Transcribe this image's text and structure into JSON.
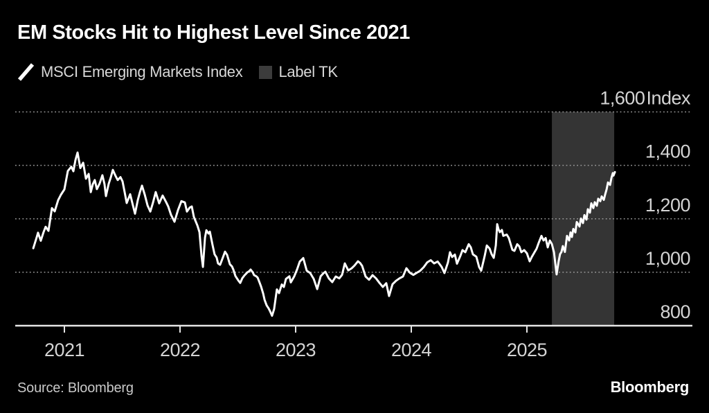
{
  "header": {
    "title": "EM Stocks Hit to Highest Level Since 2021"
  },
  "legend": {
    "series_label": "MSCI Emerging Markets Index",
    "band_label": "Label TK",
    "series_color": "#ffffff",
    "band_swatch_color": "#3c3c3c"
  },
  "footer": {
    "source": "Source: Bloomberg",
    "logo": "Bloomberg"
  },
  "colors": {
    "background": "#000000",
    "line": "#ffffff",
    "band": "#343434",
    "grid": "#9a9a9a",
    "axis": "#e6e6e6",
    "axis_label": "#d4d4d4"
  },
  "chart_data": {
    "type": "line",
    "title": "EM Stocks Hit to Highest Level Since 2021",
    "x_axis": {
      "range": [
        2020.72,
        2025.77
      ],
      "ticks": [
        {
          "value": 2021,
          "label": "2021"
        },
        {
          "value": 2022,
          "label": "2022"
        },
        {
          "value": 2023,
          "label": "2023"
        },
        {
          "value": 2024,
          "label": "2024"
        },
        {
          "value": 2025,
          "label": "2025"
        }
      ]
    },
    "y_axis": {
      "range": [
        800,
        1600
      ],
      "unit_label": "Index",
      "grid": "dotted",
      "ticks": [
        {
          "value": 1600,
          "label": "1,600"
        },
        {
          "value": 1400,
          "label": "1,400"
        },
        {
          "value": 1200,
          "label": "1,200"
        },
        {
          "value": 1000,
          "label": "1,000"
        },
        {
          "value": 800,
          "label": "800"
        }
      ]
    },
    "highlight_band": {
      "label": "Label TK",
      "from": 2025.216,
      "to": 2025.755,
      "color": "#343434"
    },
    "series": [
      {
        "name": "MSCI Emerging Markets Index",
        "color": "#ffffff",
        "points": [
          [
            2020.731,
            1090
          ],
          [
            2020.76,
            1130
          ],
          [
            2020.772,
            1148
          ],
          [
            2020.796,
            1118
          ],
          [
            2020.82,
            1150
          ],
          [
            2020.838,
            1170
          ],
          [
            2020.862,
            1155
          ],
          [
            2020.892,
            1240
          ],
          [
            2020.916,
            1228
          ],
          [
            2020.946,
            1270
          ],
          [
            2020.97,
            1290
          ],
          [
            2021.0,
            1310
          ],
          [
            2021.03,
            1379
          ],
          [
            2021.06,
            1395
          ],
          [
            2021.078,
            1378
          ],
          [
            2021.096,
            1420
          ],
          [
            2021.114,
            1448
          ],
          [
            2021.138,
            1390
          ],
          [
            2021.162,
            1410
          ],
          [
            2021.186,
            1350
          ],
          [
            2021.21,
            1368
          ],
          [
            2021.228,
            1300
          ],
          [
            2021.246,
            1330
          ],
          [
            2021.263,
            1345
          ],
          [
            2021.281,
            1311
          ],
          [
            2021.305,
            1332
          ],
          [
            2021.329,
            1363
          ],
          [
            2021.347,
            1330
          ],
          [
            2021.359,
            1285
          ],
          [
            2021.383,
            1331
          ],
          [
            2021.401,
            1355
          ],
          [
            2021.419,
            1383
          ],
          [
            2021.443,
            1360
          ],
          [
            2021.461,
            1345
          ],
          [
            2021.485,
            1356
          ],
          [
            2021.503,
            1340
          ],
          [
            2021.521,
            1300
          ],
          [
            2021.539,
            1259
          ],
          [
            2021.569,
            1292
          ],
          [
            2021.593,
            1250
          ],
          [
            2021.611,
            1219
          ],
          [
            2021.635,
            1270
          ],
          [
            2021.653,
            1300
          ],
          [
            2021.671,
            1324
          ],
          [
            2021.695,
            1290
          ],
          [
            2021.719,
            1250
          ],
          [
            2021.743,
            1227
          ],
          [
            2021.766,
            1260
          ],
          [
            2021.79,
            1300
          ],
          [
            2021.82,
            1258
          ],
          [
            2021.85,
            1287
          ],
          [
            2021.88,
            1262
          ],
          [
            2021.898,
            1246
          ],
          [
            2021.922,
            1215
          ],
          [
            2021.952,
            1189
          ],
          [
            2021.982,
            1232
          ],
          [
            2022.012,
            1266
          ],
          [
            2022.042,
            1261
          ],
          [
            2022.06,
            1227
          ],
          [
            2022.084,
            1242
          ],
          [
            2022.102,
            1246
          ],
          [
            2022.12,
            1207
          ],
          [
            2022.15,
            1175
          ],
          [
            2022.168,
            1150
          ],
          [
            2022.186,
            1060
          ],
          [
            2022.198,
            1020
          ],
          [
            2022.216,
            1130
          ],
          [
            2022.228,
            1157
          ],
          [
            2022.246,
            1145
          ],
          [
            2022.258,
            1152
          ],
          [
            2022.281,
            1103
          ],
          [
            2022.299,
            1067
          ],
          [
            2022.317,
            1055
          ],
          [
            2022.329,
            1033
          ],
          [
            2022.347,
            1028
          ],
          [
            2022.371,
            1056
          ],
          [
            2022.389,
            1077
          ],
          [
            2022.407,
            1065
          ],
          [
            2022.431,
            1030
          ],
          [
            2022.449,
            1022
          ],
          [
            2022.461,
            1010
          ],
          [
            2022.479,
            986
          ],
          [
            2022.503,
            970
          ],
          [
            2022.521,
            960
          ],
          [
            2022.539,
            978
          ],
          [
            2022.557,
            988
          ],
          [
            2022.581,
            999
          ],
          [
            2022.599,
            1004
          ],
          [
            2022.611,
            1010
          ],
          [
            2022.629,
            1000
          ],
          [
            2022.641,
            989
          ],
          [
            2022.659,
            985
          ],
          [
            2022.671,
            980
          ],
          [
            2022.689,
            960
          ],
          [
            2022.701,
            946
          ],
          [
            2022.719,
            920
          ],
          [
            2022.731,
            897
          ],
          [
            2022.749,
            876
          ],
          [
            2022.766,
            865
          ],
          [
            2022.778,
            855
          ],
          [
            2022.796,
            837
          ],
          [
            2022.814,
            862
          ],
          [
            2022.838,
            936
          ],
          [
            2022.856,
            922
          ],
          [
            2022.88,
            954
          ],
          [
            2022.898,
            945
          ],
          [
            2022.916,
            975
          ],
          [
            2022.946,
            985
          ],
          [
            2022.958,
            962
          ],
          [
            2022.988,
            985
          ],
          [
            2023.012,
            1010
          ],
          [
            2023.036,
            1040
          ],
          [
            2023.066,
            1053
          ],
          [
            2023.096,
            1006
          ],
          [
            2023.126,
            997
          ],
          [
            2023.156,
            975
          ],
          [
            2023.186,
            937
          ],
          [
            2023.216,
            985
          ],
          [
            2023.24,
            996
          ],
          [
            2023.257,
            1002
          ],
          [
            2023.287,
            977
          ],
          [
            2023.317,
            963
          ],
          [
            2023.347,
            984
          ],
          [
            2023.377,
            977
          ],
          [
            2023.401,
            990
          ],
          [
            2023.425,
            1033
          ],
          [
            2023.455,
            1007
          ],
          [
            2023.485,
            1015
          ],
          [
            2023.509,
            1025
          ],
          [
            2023.539,
            1041
          ],
          [
            2023.557,
            1035
          ],
          [
            2023.575,
            1024
          ],
          [
            2023.605,
            984
          ],
          [
            2023.635,
            972
          ],
          [
            2023.665,
            989
          ],
          [
            2023.695,
            977
          ],
          [
            2023.725,
            960
          ],
          [
            2023.754,
            945
          ],
          [
            2023.784,
            959
          ],
          [
            2023.808,
            911
          ],
          [
            2023.838,
            955
          ],
          [
            2023.868,
            968
          ],
          [
            2023.898,
            977
          ],
          [
            2023.928,
            984
          ],
          [
            2023.958,
            1015
          ],
          [
            2023.988,
            998
          ],
          [
            2024.018,
            990
          ],
          [
            2024.048,
            998
          ],
          [
            2024.078,
            1006
          ],
          [
            2024.108,
            1019
          ],
          [
            2024.138,
            1037
          ],
          [
            2024.168,
            1045
          ],
          [
            2024.198,
            1033
          ],
          [
            2024.228,
            1040
          ],
          [
            2024.263,
            1020
          ],
          [
            2024.287,
            997
          ],
          [
            2024.317,
            1036
          ],
          [
            2024.335,
            1075
          ],
          [
            2024.353,
            1057
          ],
          [
            2024.377,
            1066
          ],
          [
            2024.395,
            1032
          ],
          [
            2024.425,
            1062
          ],
          [
            2024.443,
            1083
          ],
          [
            2024.467,
            1075
          ],
          [
            2024.497,
            1105
          ],
          [
            2024.515,
            1093
          ],
          [
            2024.533,
            1067
          ],
          [
            2024.563,
            1058
          ],
          [
            2024.587,
            1019
          ],
          [
            2024.605,
            1006
          ],
          [
            2024.635,
            1061
          ],
          [
            2024.653,
            1100
          ],
          [
            2024.677,
            1089
          ],
          [
            2024.695,
            1067
          ],
          [
            2024.713,
            1054
          ],
          [
            2024.731,
            1100
          ],
          [
            2024.743,
            1180
          ],
          [
            2024.755,
            1160
          ],
          [
            2024.766,
            1150
          ],
          [
            2024.784,
            1158
          ],
          [
            2024.796,
            1136
          ],
          [
            2024.826,
            1141
          ],
          [
            2024.844,
            1128
          ],
          [
            2024.856,
            1110
          ],
          [
            2024.874,
            1084
          ],
          [
            2024.892,
            1080
          ],
          [
            2024.916,
            1105
          ],
          [
            2024.934,
            1097
          ],
          [
            2024.952,
            1075
          ],
          [
            2024.976,
            1083
          ],
          [
            2025.0,
            1071
          ],
          [
            2025.024,
            1041
          ],
          [
            2025.042,
            1057
          ],
          [
            2025.066,
            1075
          ],
          [
            2025.084,
            1088
          ],
          [
            2025.102,
            1110
          ],
          [
            2025.126,
            1136
          ],
          [
            2025.144,
            1119
          ],
          [
            2025.162,
            1128
          ],
          [
            2025.18,
            1093
          ],
          [
            2025.198,
            1119
          ],
          [
            2025.216,
            1105
          ],
          [
            2025.234,
            1075
          ],
          [
            2025.257,
            992
          ],
          [
            2025.275,
            1042
          ],
          [
            2025.287,
            1068
          ],
          [
            2025.299,
            1076
          ],
          [
            2025.311,
            1098
          ],
          [
            2025.329,
            1076
          ],
          [
            2025.347,
            1136
          ],
          [
            2025.365,
            1119
          ],
          [
            2025.377,
            1149
          ],
          [
            2025.389,
            1132
          ],
          [
            2025.401,
            1162
          ],
          [
            2025.419,
            1149
          ],
          [
            2025.431,
            1188
          ],
          [
            2025.455,
            1171
          ],
          [
            2025.467,
            1201
          ],
          [
            2025.485,
            1184
          ],
          [
            2025.497,
            1214
          ],
          [
            2025.515,
            1197
          ],
          [
            2025.527,
            1236
          ],
          [
            2025.545,
            1223
          ],
          [
            2025.557,
            1258
          ],
          [
            2025.575,
            1240
          ],
          [
            2025.587,
            1262
          ],
          [
            2025.605,
            1249
          ],
          [
            2025.617,
            1275
          ],
          [
            2025.635,
            1266
          ],
          [
            2025.647,
            1284
          ],
          [
            2025.665,
            1271
          ],
          [
            2025.677,
            1292
          ],
          [
            2025.689,
            1310
          ],
          [
            2025.701,
            1336
          ],
          [
            2025.719,
            1327
          ],
          [
            2025.731,
            1353
          ],
          [
            2025.743,
            1371
          ],
          [
            2025.749,
            1362
          ],
          [
            2025.761,
            1375
          ]
        ]
      }
    ]
  }
}
